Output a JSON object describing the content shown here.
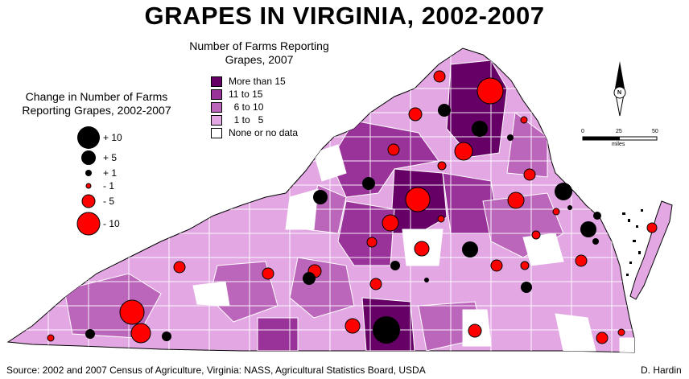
{
  "title": "GRAPES IN VIRGINIA, 2002-2007",
  "farms_legend": {
    "title_line1": "Number of Farms Reporting",
    "title_line2": "Grapes, 2007",
    "items": [
      {
        "label": "More than 15",
        "color": "#660066"
      },
      {
        "label": "11 to 15",
        "color": "#993399"
      },
      {
        "label": "  6 to 10",
        "color": "#bb66bb"
      },
      {
        "label": "  1 to   5",
        "color": "#e3a8e3"
      },
      {
        "label": "None or no data",
        "color": "#ffffff"
      }
    ]
  },
  "change_legend": {
    "title_line1": "Change in Number of Farms",
    "title_line2": "Reporting Grapes, 2002-2007",
    "items": [
      {
        "label": "+ 10",
        "value": 10,
        "color": "#000000"
      },
      {
        "label": "+ 5",
        "value": 5,
        "color": "#000000"
      },
      {
        "label": "+ 1",
        "value": 1,
        "color": "#000000"
      },
      {
        "label": "- 1",
        "value": -1,
        "color": "#ff0000"
      },
      {
        "label": "- 5",
        "value": -5,
        "color": "#ff0000"
      },
      {
        "label": "- 10",
        "value": -10,
        "color": "#ff0000"
      }
    ]
  },
  "north_arrow": {
    "label": "N"
  },
  "scale_bar": {
    "ticks": [
      "0",
      "25",
      "50"
    ],
    "unit": "miles"
  },
  "source": "Source: 2002 and 2007 Census of Agriculture, Virginia: NASS, Agricultural Statistics Board, USDA",
  "author": "D. Hardin"
}
